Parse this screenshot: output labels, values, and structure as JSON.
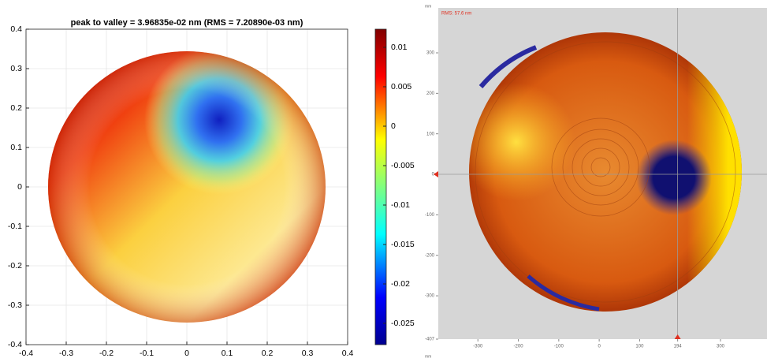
{
  "chart_data": [
    {
      "type": "surface",
      "title": "peak to valley = 3.96835e-02 nm (RMS = 7.20890e-03 nm)",
      "xlim": [
        -0.4,
        0.4
      ],
      "ylim": [
        -0.4,
        0.4
      ],
      "xticks": [
        -0.4,
        -0.3,
        -0.2,
        -0.1,
        0,
        0.1,
        0.2,
        0.3,
        0.4
      ],
      "yticks": [
        -0.4,
        -0.3,
        -0.2,
        -0.1,
        0,
        0.1,
        0.2,
        0.3,
        0.4
      ],
      "grid": true,
      "colorbar": {
        "lim": [
          -0.0277,
          0.0123
        ],
        "ticks": [
          -0.025,
          -0.02,
          -0.015,
          -0.01,
          -0.005,
          0,
          0.005,
          0.01
        ]
      }
    },
    {
      "type": "image",
      "annotation": "RMS: 57.6 nm",
      "x_unit": "mm",
      "y_unit": "mm",
      "xlim": [
        -435,
        415
      ],
      "ylim": [
        -407,
        411
      ],
      "xticks": [
        -300,
        -200,
        -100,
        0,
        100,
        194,
        300
      ],
      "yticks": [
        -407,
        -300,
        -200,
        -100,
        0,
        100,
        200,
        300
      ],
      "cursor": {
        "x": 194,
        "y": 0
      }
    }
  ]
}
